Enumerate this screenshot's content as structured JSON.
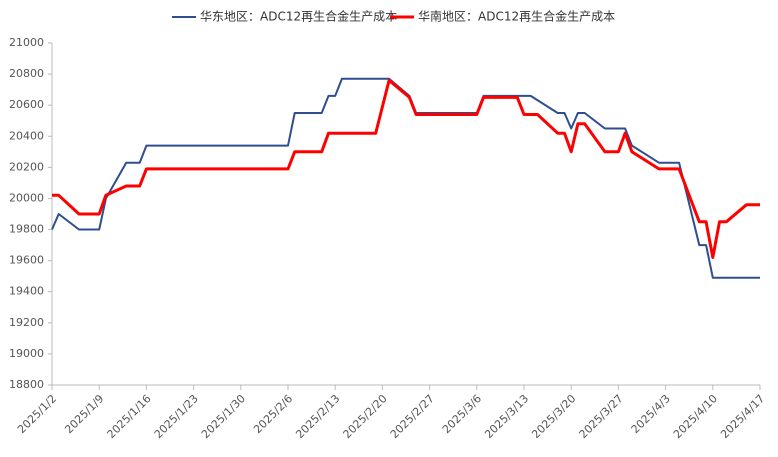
{
  "chart_data": {
    "type": "line",
    "series": [
      {
        "name": "华东地区：ADC12再生合金生产成本",
        "color": "#2e4e8f",
        "x": [
          "2025/1/2",
          "2025/1/3",
          "2025/1/6",
          "2025/1/9",
          "2025/1/10",
          "2025/1/13",
          "2025/1/15",
          "2025/1/16",
          "2025/2/6",
          "2025/2/7",
          "2025/2/11",
          "2025/2/12",
          "2025/2/13",
          "2025/2/14",
          "2025/2/21",
          "2025/2/24",
          "2025/2/25",
          "2025/3/6",
          "2025/3/7",
          "2025/3/14",
          "2025/3/18",
          "2025/3/19",
          "2025/3/20",
          "2025/3/21",
          "2025/3/22",
          "2025/3/25",
          "2025/3/28",
          "2025/3/29",
          "2025/4/2",
          "2025/4/5",
          "2025/4/8",
          "2025/4/9",
          "2025/4/10",
          "2025/4/17"
        ],
        "values": [
          19800,
          19900,
          19800,
          19800,
          20000,
          20230,
          20230,
          20340,
          20340,
          20550,
          20550,
          20660,
          20660,
          20770,
          20770,
          20660,
          20550,
          20550,
          20660,
          20660,
          20550,
          20550,
          20450,
          20550,
          20550,
          20450,
          20450,
          20340,
          20230,
          20230,
          19700,
          19700,
          19490,
          19490
        ]
      },
      {
        "name": "华南地区：ADC12再生合金生产成本",
        "color": "#ff0000",
        "x": [
          "2025/1/2",
          "2025/1/3",
          "2025/1/6",
          "2025/1/9",
          "2025/1/10",
          "2025/1/13",
          "2025/1/15",
          "2025/1/16",
          "2025/2/6",
          "2025/2/7",
          "2025/2/11",
          "2025/2/12",
          "2025/2/19",
          "2025/2/21",
          "2025/2/24",
          "2025/2/25",
          "2025/3/6",
          "2025/3/7",
          "2025/3/12",
          "2025/3/13",
          "2025/3/15",
          "2025/3/18",
          "2025/3/19",
          "2025/3/20",
          "2025/3/21",
          "2025/3/22",
          "2025/3/25",
          "2025/3/27",
          "2025/3/28",
          "2025/3/29",
          "2025/4/2",
          "2025/4/5",
          "2025/4/8",
          "2025/4/9",
          "2025/4/10",
          "2025/4/11",
          "2025/4/12",
          "2025/4/15",
          "2025/4/17"
        ],
        "values": [
          20020,
          20020,
          19900,
          19900,
          20020,
          20080,
          20080,
          20190,
          20190,
          20300,
          20300,
          20420,
          20420,
          20760,
          20650,
          20540,
          20540,
          20650,
          20650,
          20540,
          20540,
          20420,
          20420,
          20300,
          20480,
          20480,
          20300,
          20300,
          20420,
          20300,
          20190,
          20190,
          19850,
          19850,
          19620,
          19850,
          19850,
          19960,
          19960
        ]
      }
    ],
    "xlim": [
      "2025/1/2",
      "2025/4/17"
    ],
    "xticks": [
      "2025/1/2",
      "2025/1/9",
      "2025/1/16",
      "2025/1/23",
      "2025/1/30",
      "2025/2/6",
      "2025/2/13",
      "2025/2/20",
      "2025/2/27",
      "2025/3/6",
      "2025/3/13",
      "2025/3/20",
      "2025/3/27",
      "2025/4/3",
      "2025/4/10",
      "2025/4/17"
    ],
    "ylim": [
      18800,
      21000
    ],
    "yticks": [
      18800,
      19000,
      19200,
      19400,
      19600,
      19800,
      20000,
      20200,
      20400,
      20600,
      20800,
      21000
    ],
    "legend": "top"
  }
}
